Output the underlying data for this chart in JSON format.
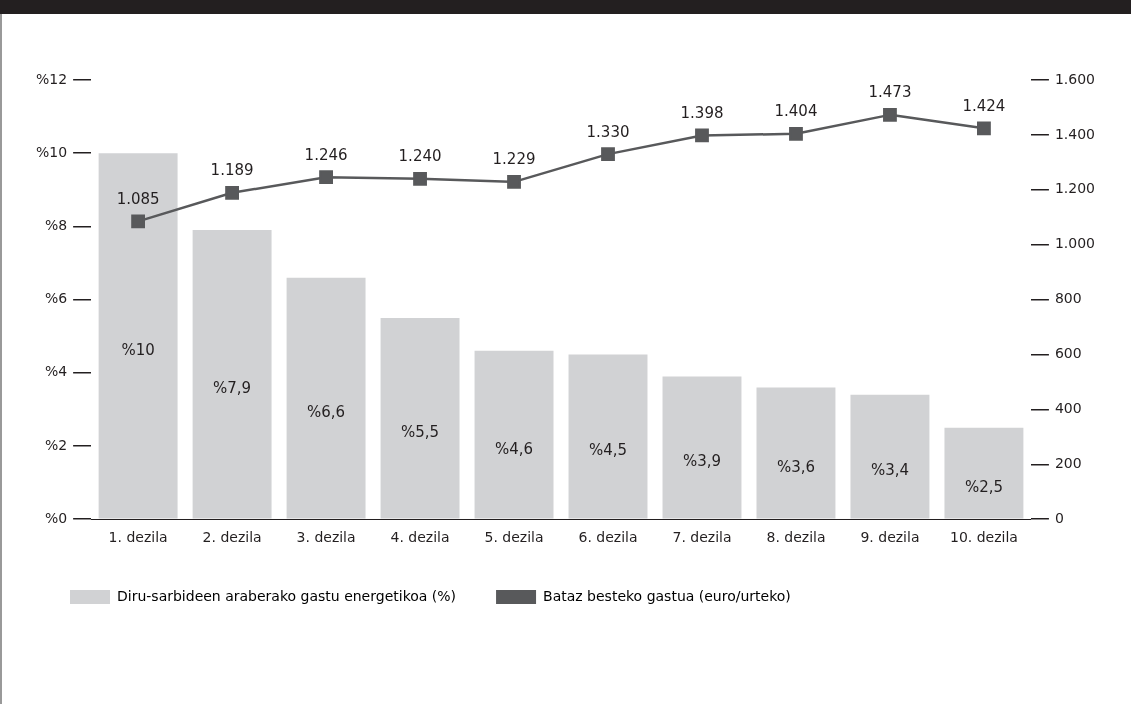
{
  "chart_data": {
    "type": "bar",
    "categories": [
      "1. dezila",
      "2. dezila",
      "3. dezila",
      "4. dezila",
      "5. dezila",
      "6. dezila",
      "7. dezila",
      "8. dezila",
      "9. dezila",
      "10. dezila"
    ],
    "series": [
      {
        "name": "Diru-sarbideen araberako gastu energetikoa (%)",
        "color": "#d1d2d4",
        "values": [
          10,
          7.9,
          6.6,
          5.5,
          4.6,
          4.5,
          3.9,
          3.6,
          3.4,
          2.5
        ],
        "value_labels": [
          "%10",
          "%7,9",
          "%6,6",
          "%5,5",
          "%4,6",
          "%4,5",
          "%3,9",
          "%3,6",
          "%3,4",
          "%2,5"
        ]
      },
      {
        "name": "Bataz besteko gastua (euro/urteko)",
        "type": "line",
        "axis": "y2",
        "color": "#58595b",
        "marker": "square",
        "values": [
          1085,
          1189,
          1246,
          1240,
          1229,
          1330,
          1398,
          1404,
          1473,
          1424
        ],
        "value_labels": [
          "1.085",
          "1.189",
          "1.246",
          "1.240",
          "1.229",
          "1.330",
          "1.398",
          "1.404",
          "1.473",
          "1.424"
        ]
      }
    ],
    "ylim": [
      0,
      12
    ],
    "yticks": [
      {
        "value": 0,
        "label": "%0"
      },
      {
        "value": 2,
        "label": "%2"
      },
      {
        "value": 4,
        "label": "%4"
      },
      {
        "value": 6,
        "label": "%6"
      },
      {
        "value": 8,
        "label": "%8"
      },
      {
        "value": 10,
        "label": "%10"
      },
      {
        "value": 12,
        "label": "%12"
      }
    ],
    "y2lim": [
      0,
      1600
    ],
    "y2ticks": [
      {
        "value": 0,
        "label": "0"
      },
      {
        "value": 200,
        "label": "200"
      },
      {
        "value": 400,
        "label": "400"
      },
      {
        "value": 600,
        "label": "600"
      },
      {
        "value": 800,
        "label": "800"
      },
      {
        "value": 1000,
        "label": "1.000"
      },
      {
        "value": 1200,
        "label": "1.200"
      },
      {
        "value": 1400,
        "label": "1.400"
      },
      {
        "value": 1600,
        "label": "1.600"
      }
    ],
    "grid": false,
    "legend": "bottom left"
  }
}
